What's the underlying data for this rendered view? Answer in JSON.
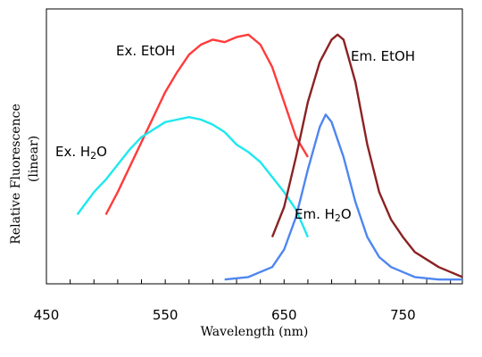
{
  "chart_data": {
    "type": "line",
    "xlabel": "Wavelength (nm)",
    "ylabel_line1": "Relative Fluorescence",
    "ylabel_line2": "(linear)",
    "xlim": [
      450,
      800
    ],
    "ylim": [
      0,
      1.0
    ],
    "x_ticks": [
      450,
      550,
      650,
      750
    ],
    "x_tick_labels": [
      "450",
      "550",
      "650",
      "750"
    ],
    "x_minor_tick_step": 20,
    "grid": false,
    "series": [
      {
        "name": "Ex. EtOH",
        "label_parts": [
          "Ex. EtOH"
        ],
        "color": "#ff3b3b",
        "x": [
          500,
          510,
          520,
          530,
          540,
          550,
          560,
          570,
          580,
          590,
          600,
          610,
          620,
          630,
          640,
          650,
          660,
          670
        ],
        "y": [
          0.27,
          0.36,
          0.46,
          0.56,
          0.66,
          0.76,
          0.84,
          0.91,
          0.95,
          0.97,
          0.96,
          0.98,
          0.99,
          0.95,
          0.86,
          0.72,
          0.58,
          0.5
        ]
      },
      {
        "name": "Ex. H2O",
        "label_parts": [
          "Ex. H",
          "2",
          "O"
        ],
        "color": "#1ee8ee",
        "x": [
          476,
          490,
          500,
          510,
          520,
          530,
          540,
          550,
          560,
          570,
          580,
          590,
          600,
          610,
          620,
          630,
          640,
          650,
          660,
          670
        ],
        "y": [
          0.27,
          0.36,
          0.41,
          0.47,
          0.53,
          0.58,
          0.61,
          0.64,
          0.65,
          0.66,
          0.65,
          0.63,
          0.6,
          0.55,
          0.52,
          0.48,
          0.42,
          0.36,
          0.29,
          0.18
        ]
      },
      {
        "name": "Em. EtOH",
        "label_parts": [
          "Em. EtOH"
        ],
        "color": "#8b2222",
        "x": [
          640,
          650,
          660,
          670,
          680,
          690,
          695,
          700,
          710,
          720,
          730,
          740,
          750,
          760,
          770,
          780,
          790,
          800
        ],
        "y": [
          0.18,
          0.3,
          0.5,
          0.72,
          0.88,
          0.97,
          0.99,
          0.97,
          0.8,
          0.55,
          0.36,
          0.25,
          0.18,
          0.12,
          0.09,
          0.06,
          0.04,
          0.02
        ]
      },
      {
        "name": "Em. H2O",
        "label_parts": [
          "Em. H",
          "2",
          "O"
        ],
        "color": "#4f86ef",
        "x": [
          600,
          620,
          640,
          650,
          660,
          670,
          680,
          685,
          690,
          700,
          710,
          720,
          730,
          740,
          750,
          760,
          780,
          800
        ],
        "y": [
          0.01,
          0.02,
          0.06,
          0.13,
          0.26,
          0.45,
          0.62,
          0.67,
          0.64,
          0.5,
          0.32,
          0.18,
          0.1,
          0.06,
          0.04,
          0.02,
          0.01,
          0.01
        ]
      }
    ]
  }
}
